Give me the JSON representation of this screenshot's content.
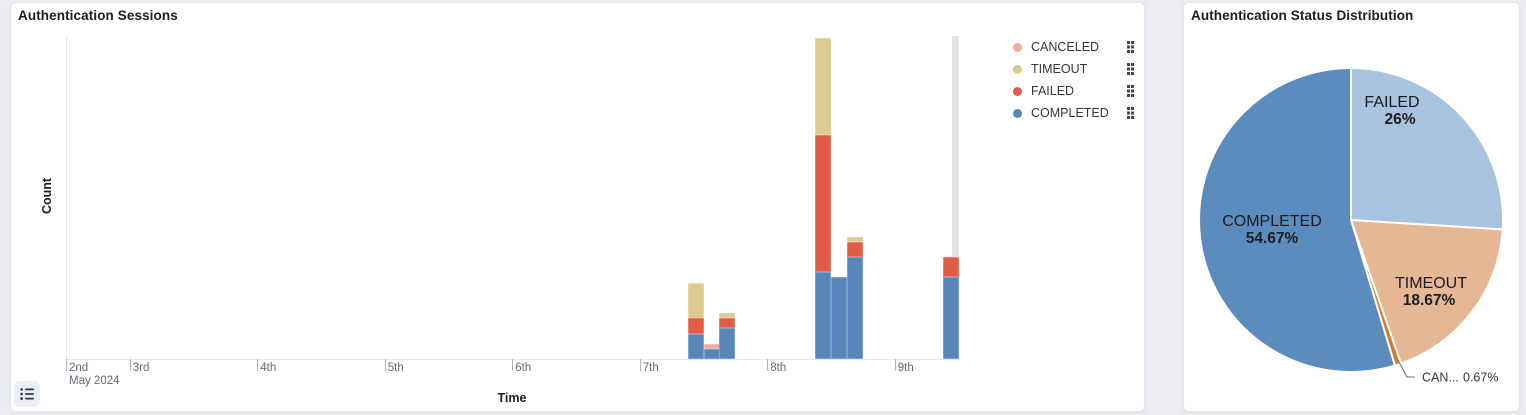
{
  "page": {
    "background_color": "#ECEDF2",
    "panel_border_color": "#E3E6EC"
  },
  "icons": {
    "legend_action": "vertical-boxes-icon",
    "legend_toggle": "list-icon"
  },
  "chart_data": [
    {
      "type": "bar",
      "title": "Authentication Sessions",
      "xlabel": "Time",
      "ylabel": "Count",
      "stacked": true,
      "grid": false,
      "legend_position": "right",
      "y_axis_tick_labels_visible": false,
      "x_domain": "2024-05-02 ~12:00 to 2024-05-09 ~12:00",
      "bucket_interval_hours": 3,
      "partial_bucket_endzone": true,
      "values_estimated_from_pixels": true,
      "x_ticks": [
        {
          "label": "2nd",
          "sublabel": "May 2024",
          "day": 2
        },
        {
          "label": "3rd",
          "day": 3
        },
        {
          "label": "4th",
          "day": 4
        },
        {
          "label": "5th",
          "day": 5
        },
        {
          "label": "6th",
          "day": 6
        },
        {
          "label": "7th",
          "day": 7
        },
        {
          "label": "8th",
          "day": 8
        },
        {
          "label": "9th",
          "day": 9
        }
      ],
      "legend": [
        {
          "label": "CANCELED",
          "color": "#F2AC9D"
        },
        {
          "label": "TIMEOUT",
          "color": "#DCC988"
        },
        {
          "label": "FAILED",
          "color": "#E15C45"
        },
        {
          "label": "COMPLETED",
          "color": "#5787BA"
        }
      ],
      "colors": {
        "COMPLETED": "#5787BA",
        "FAILED": "#E15C45",
        "TIMEOUT": "#DECB8C",
        "CANCELED": "#F2AC9D"
      },
      "stack_order_bottom_to_top": [
        "COMPLETED",
        "FAILED",
        "TIMEOUT",
        "CANCELED"
      ],
      "buckets": [
        {
          "day": 7,
          "hour": 9,
          "time_label": "May 7 09:00",
          "values": {
            "COMPLETED": 5,
            "FAILED": 3,
            "TIMEOUT": 7,
            "CANCELED": 0
          }
        },
        {
          "day": 7,
          "hour": 12,
          "time_label": "May 7 12:00",
          "values": {
            "COMPLETED": 2,
            "FAILED": 0,
            "TIMEOUT": 0,
            "CANCELED": 1
          }
        },
        {
          "day": 7,
          "hour": 15,
          "time_label": "May 7 15:00",
          "values": {
            "COMPLETED": 6,
            "FAILED": 2,
            "TIMEOUT": 1,
            "CANCELED": 0
          }
        },
        {
          "day": 8,
          "hour": 9,
          "time_label": "May 8 09:00",
          "values": {
            "COMPLETED": 17,
            "FAILED": 27,
            "TIMEOUT": 19,
            "CANCELED": 0
          }
        },
        {
          "day": 8,
          "hour": 12,
          "time_label": "May 8 12:00",
          "values": {
            "COMPLETED": 16,
            "FAILED": 0,
            "TIMEOUT": 0,
            "CANCELED": 0
          }
        },
        {
          "day": 8,
          "hour": 15,
          "time_label": "May 8 15:00",
          "values": {
            "COMPLETED": 20,
            "FAILED": 3,
            "TIMEOUT": 1,
            "CANCELED": 0
          }
        },
        {
          "day": 9,
          "hour": 9,
          "time_label": "May 9 09:00",
          "values": {
            "COMPLETED": 16,
            "FAILED": 4,
            "TIMEOUT": 0,
            "CANCELED": 0
          }
        }
      ],
      "series_totals": {
        "COMPLETED": 82,
        "FAILED": 39,
        "TIMEOUT": 28,
        "CANCELED": 1,
        "total": 150
      }
    },
    {
      "type": "pie",
      "title": "Authentication Status Distribution",
      "clockwise_from": "top",
      "slices": [
        {
          "label": "FAILED",
          "value_pct": 26,
          "pct_label": "26%",
          "color": "#A7C3DE"
        },
        {
          "label": "TIMEOUT",
          "value_pct": 18.67,
          "pct_label": "18.67%",
          "color": "#E5B794"
        },
        {
          "label": "CANCELED",
          "value_pct": 0.67,
          "pct_label": "0.67%",
          "color": "#D9772F",
          "truncated_label": "CAN..."
        },
        {
          "label": "COMPLETED",
          "value_pct": 54.67,
          "pct_label": "54.67%",
          "color": "#5B8CBE"
        }
      ]
    }
  ]
}
